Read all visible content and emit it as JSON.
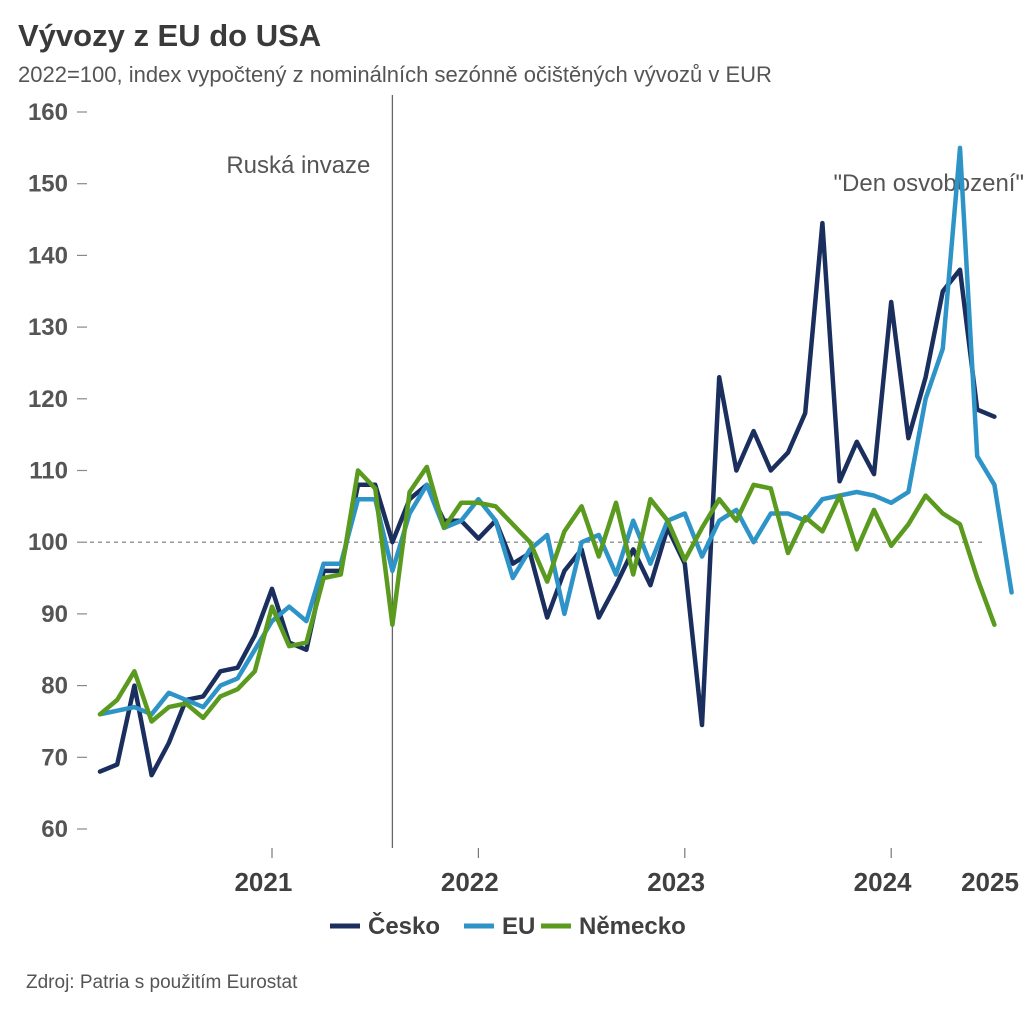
{
  "chart_data": {
    "type": "line",
    "title": "Vývozy z EU do USA",
    "subtitle": "2022=100, index vypočtený z nominálních sezónně očištěných vývozů v EUR",
    "source": "Zdroj: Patria s použitím Eurostat",
    "ylim": [
      60,
      160
    ],
    "y_ticks": [
      "60",
      "70",
      "80",
      "90",
      "100",
      "110",
      "120",
      "130",
      "140",
      "150",
      "160"
    ],
    "x_labels": [
      "2021",
      "2022",
      "2023",
      "2024",
      "2025"
    ],
    "x_start": "2020-09",
    "reference_line": 100,
    "grid": false,
    "legend_position": "bottom",
    "annotations": [
      {
        "label": "Ruská invaze",
        "date": "2022-02"
      },
      {
        "label": "\"Den osvobození\"",
        "date": "2025-04"
      }
    ],
    "colors": {
      "Česko": "#1b2f5e",
      "EU": "#2e94c8",
      "Německo": "#5a9a1e"
    },
    "series": [
      {
        "name": "Česko",
        "values": [
          68,
          69,
          80,
          67.5,
          72,
          78,
          78.5,
          82,
          82.5,
          87,
          93.5,
          86,
          85,
          96,
          96,
          108,
          108,
          100,
          106,
          108,
          103,
          103,
          100.5,
          103,
          97,
          98.5,
          89.5,
          96,
          99,
          89.5,
          94,
          99,
          94,
          102,
          97,
          74.5,
          123,
          110,
          115.5,
          110,
          112.5,
          118,
          144.5,
          108.5,
          114,
          109.5,
          133.5,
          114.5,
          123,
          135,
          138,
          118.5,
          117.5
        ]
      },
      {
        "name": "EU",
        "values": [
          76,
          76.5,
          77,
          76,
          79,
          78,
          77,
          80,
          81,
          85,
          89,
          91,
          89,
          97,
          97,
          106,
          106,
          96,
          104,
          108,
          102,
          103,
          106,
          103,
          95,
          99,
          101,
          90,
          100,
          101,
          95.5,
          103,
          97,
          103,
          104,
          98,
          103,
          104.5,
          100,
          104,
          104,
          103,
          106,
          106.5,
          107,
          106.5,
          105.5,
          107,
          120,
          127,
          155,
          112,
          108,
          93
        ]
      },
      {
        "name": "Německo",
        "values": [
          76,
          78,
          82,
          75,
          77,
          77.5,
          75.5,
          78.5,
          79.5,
          82,
          91,
          85.5,
          86,
          95,
          95.5,
          110,
          107.5,
          88.5,
          107,
          110.5,
          102,
          105.5,
          105.5,
          105,
          102.5,
          100,
          94.5,
          101.5,
          105,
          98,
          105.5,
          95.5,
          106,
          103,
          97.5,
          102,
          106,
          103,
          108,
          107.5,
          98.5,
          103.5,
          101.5,
          106.5,
          99,
          104.5,
          99.5,
          102.5,
          106.5,
          104,
          102.5,
          95,
          88.5
        ]
      }
    ]
  }
}
